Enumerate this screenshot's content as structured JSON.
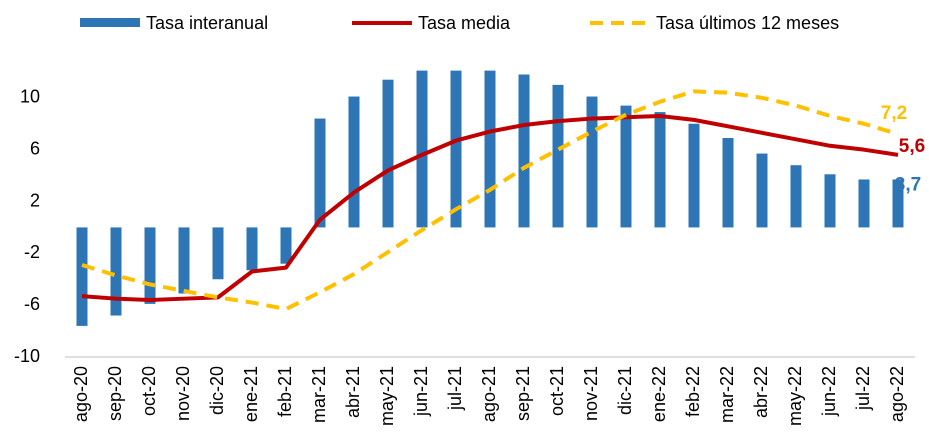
{
  "chart_data": {
    "type": "bar",
    "categories": [
      "ago-20",
      "sep-20",
      "oct-20",
      "nov-20",
      "dic-20",
      "ene-21",
      "feb-21",
      "mar-21",
      "abr-21",
      "may-21",
      "jun-21",
      "jul-21",
      "ago-21",
      "sep-21",
      "oct-21",
      "nov-21",
      "dic-21",
      "ene-22",
      "feb-22",
      "mar-22",
      "abr-22",
      "may-22",
      "jun-22",
      "jul-22",
      "ago-22"
    ],
    "series": [
      {
        "name": "Tasa interanual",
        "type": "bar",
        "color": "#2e75b6",
        "values": [
          -7.6,
          -6.8,
          -5.9,
          -5.1,
          -4.0,
          -3.3,
          -2.8,
          8.4,
          10.1,
          11.4,
          12.1,
          12.1,
          12.1,
          11.8,
          11.0,
          10.1,
          9.4,
          8.9,
          8.0,
          6.9,
          5.7,
          4.8,
          4.1,
          3.7,
          3.7
        ],
        "value_labels": [
          null,
          null,
          null,
          null,
          null,
          null,
          null,
          null,
          null,
          null,
          null,
          null,
          null,
          null,
          null,
          null,
          null,
          null,
          null,
          null,
          null,
          null,
          null,
          null,
          "3,7"
        ]
      },
      {
        "name": "Tasa media",
        "type": "line",
        "color": "#c00000",
        "values": [
          -5.3,
          -5.5,
          -5.6,
          -5.5,
          -5.4,
          -3.4,
          -3.1,
          0.6,
          2.7,
          4.4,
          5.6,
          6.7,
          7.4,
          7.9,
          8.2,
          8.4,
          8.5,
          8.6,
          8.3,
          7.8,
          7.3,
          6.8,
          6.3,
          6.0,
          5.6
        ],
        "value_labels": [
          null,
          null,
          null,
          null,
          null,
          null,
          null,
          null,
          null,
          null,
          null,
          null,
          null,
          null,
          null,
          null,
          null,
          null,
          null,
          null,
          null,
          null,
          null,
          null,
          "5,6"
        ]
      },
      {
        "name": "Tasa últimos 12 meses",
        "type": "dashed-line",
        "color": "#ffc000",
        "values": [
          -2.9,
          -3.7,
          -4.4,
          -4.9,
          -5.4,
          -5.8,
          -6.3,
          -5.0,
          -3.6,
          -1.9,
          -0.2,
          1.4,
          2.9,
          4.6,
          6.0,
          7.4,
          8.7,
          9.7,
          10.5,
          10.4,
          10.0,
          9.4,
          8.6,
          8.0,
          7.2
        ],
        "value_labels": [
          null,
          null,
          null,
          null,
          null,
          null,
          null,
          null,
          null,
          null,
          null,
          null,
          null,
          null,
          null,
          null,
          null,
          null,
          null,
          null,
          null,
          null,
          null,
          null,
          "7,2"
        ]
      }
    ],
    "ylim": [
      -10,
      14
    ],
    "yticks": [
      -10,
      -6,
      -2,
      2,
      6,
      10
    ],
    "grid": false
  }
}
